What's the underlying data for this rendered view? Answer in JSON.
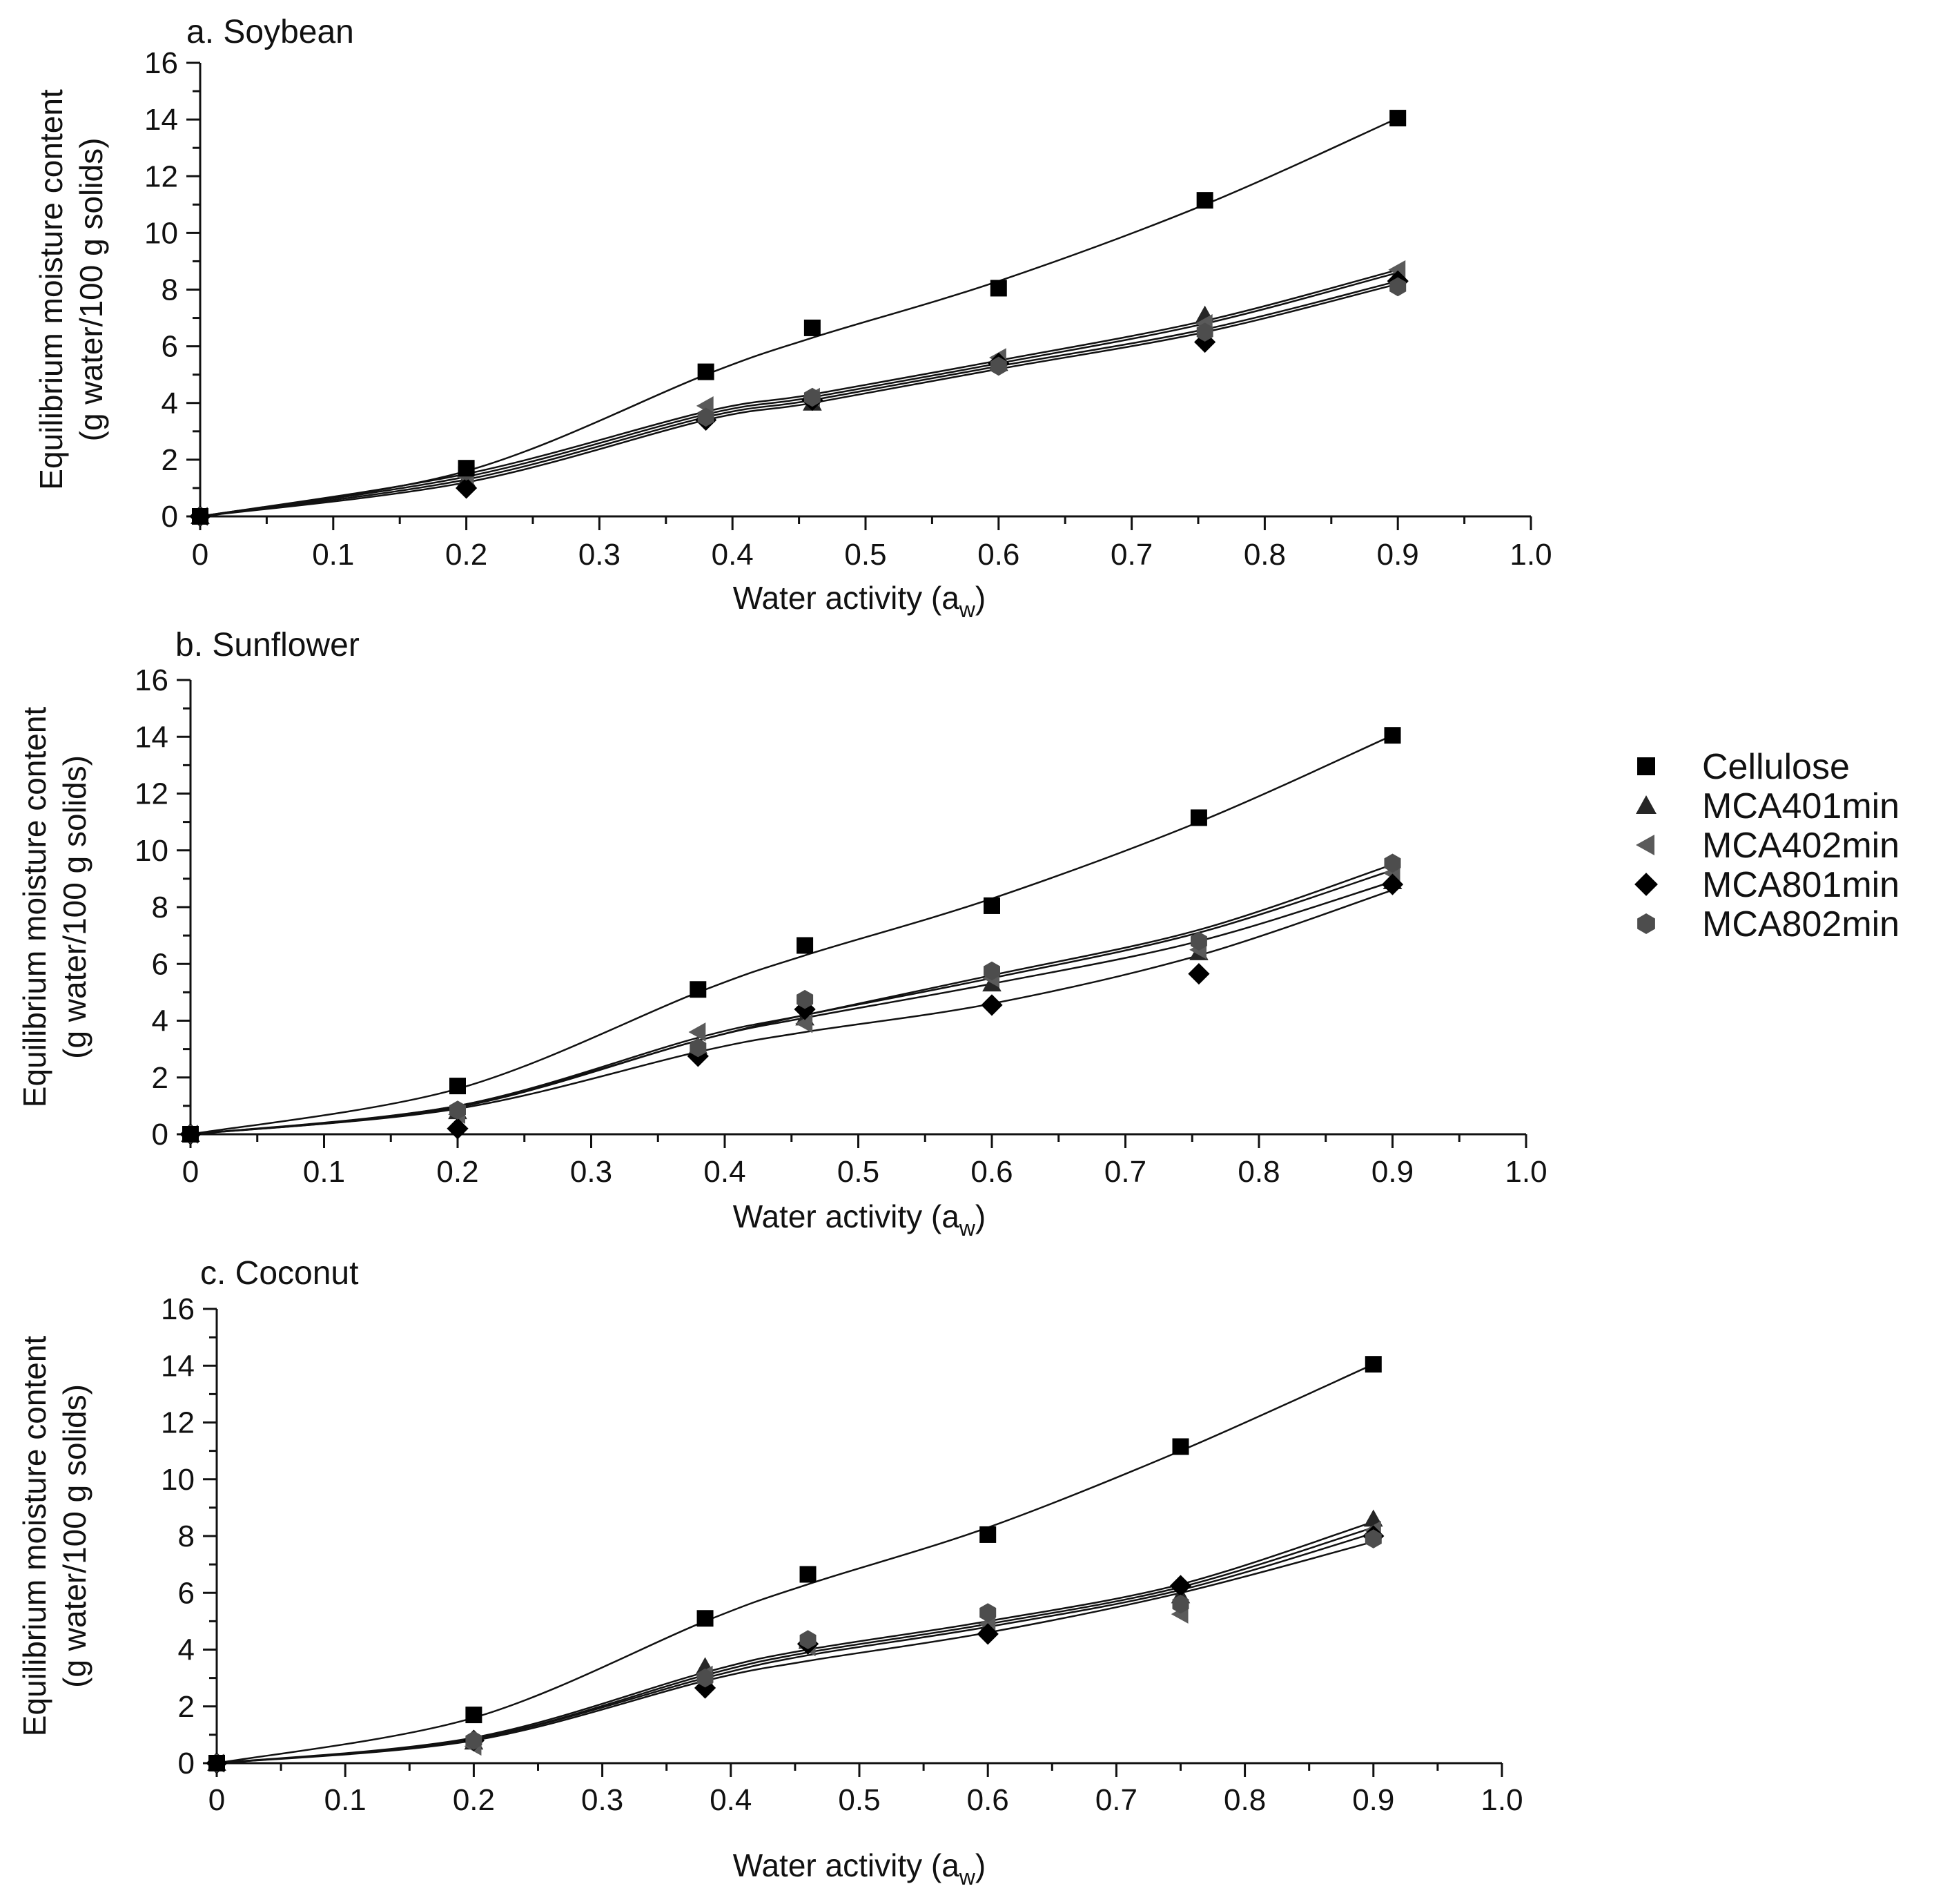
{
  "colors": {
    "cellulose": "#000000",
    "mca401min": "#262626",
    "mca402min": "#5a5a5a",
    "mca801min": "#000000",
    "mca802min": "#4d4d4d",
    "fit_line": "#111111"
  },
  "legend": [
    {
      "key": "cellulose",
      "label": "Cellulose",
      "marker": "square"
    },
    {
      "key": "mca401min",
      "label": "MCA401min",
      "marker": "triangle-up"
    },
    {
      "key": "mca402min",
      "label": "MCA402min",
      "marker": "triangle-left"
    },
    {
      "key": "mca801min",
      "label": "MCA801min",
      "marker": "diamond"
    },
    {
      "key": "mca802min",
      "label": "MCA802min",
      "marker": "hexagon"
    }
  ],
  "chart_data": [
    {
      "type": "scatter",
      "title": "a. Soybean",
      "xlabel": "Water activity (a",
      "xlabel_sub": "w",
      "xlabel_close": ")",
      "ylabel": [
        "Equilibrium moisture content",
        "(g water/100 g solids)"
      ],
      "xlim": [
        0,
        1.0
      ],
      "ylim": [
        0,
        16
      ],
      "xticks": [
        "0",
        "0.1",
        "0.2",
        "0.3",
        "0.4",
        "0.5",
        "0.6",
        "0.7",
        "0.8",
        "0.9",
        "1.0"
      ],
      "yticks": [
        "0",
        "2",
        "4",
        "6",
        "8",
        "10",
        "12",
        "14",
        "16"
      ],
      "x": [
        0,
        0.2,
        0.38,
        0.46,
        0.6,
        0.755,
        0.9
      ],
      "series": [
        {
          "key": "cellulose",
          "name": "Cellulose",
          "values": [
            0,
            1.7,
            5.1,
            6.65,
            8.05,
            11.15,
            14.05
          ],
          "fit": [
            0,
            1.6,
            5.0,
            6.3,
            8.3,
            11.0,
            14.05
          ]
        },
        {
          "key": "mca401min",
          "name": "MCA401min",
          "values": [
            0,
            1.3,
            3.6,
            4.0,
            5.4,
            7.1,
            8.5
          ],
          "fit": [
            0,
            1.4,
            3.6,
            4.2,
            5.4,
            6.8,
            8.6
          ]
        },
        {
          "key": "mca402min",
          "name": "MCA402min",
          "values": [
            0,
            1.4,
            3.9,
            4.2,
            5.6,
            6.8,
            8.7
          ],
          "fit": [
            0,
            1.5,
            3.7,
            4.3,
            5.5,
            6.9,
            8.7
          ]
        },
        {
          "key": "mca801min",
          "name": "MCA801min",
          "values": [
            0,
            1.0,
            3.4,
            4.1,
            5.4,
            6.15,
            8.3
          ],
          "fit": [
            0,
            1.2,
            3.4,
            4.0,
            5.2,
            6.5,
            8.2
          ]
        },
        {
          "key": "mca802min",
          "name": "MCA802min",
          "values": [
            0,
            1.6,
            3.5,
            4.2,
            5.3,
            6.5,
            8.1
          ],
          "fit": [
            0,
            1.3,
            3.5,
            4.1,
            5.3,
            6.6,
            8.3
          ]
        }
      ]
    },
    {
      "type": "scatter",
      "title": "b. Sunflower",
      "xlabel": "Water activity (a",
      "xlabel_sub": "w",
      "xlabel_close": ")",
      "ylabel": [
        "Equilibrium moisture content",
        "(g water/100 g solids)"
      ],
      "xlim": [
        0,
        1.0
      ],
      "ylim": [
        0,
        16
      ],
      "xticks": [
        "0",
        "0.1",
        "0.2",
        "0.3",
        "0.4",
        "0.5",
        "0.6",
        "0.7",
        "0.8",
        "0.9",
        "1.0"
      ],
      "yticks": [
        "0",
        "2",
        "4",
        "6",
        "8",
        "10",
        "12",
        "14",
        "16"
      ],
      "x": [
        0,
        0.2,
        0.38,
        0.46,
        0.6,
        0.755,
        0.9
      ],
      "series": [
        {
          "key": "cellulose",
          "name": "Cellulose",
          "values": [
            0,
            1.7,
            5.1,
            6.65,
            8.05,
            11.15,
            14.05
          ],
          "fit": [
            0,
            1.6,
            5.0,
            6.3,
            8.3,
            11.0,
            14.05
          ]
        },
        {
          "key": "mca401min",
          "name": "MCA401min",
          "values": [
            0,
            0.8,
            3.1,
            4.1,
            5.3,
            6.4,
            8.9
          ],
          "fit": [
            0,
            0.95,
            3.3,
            4.1,
            5.3,
            6.8,
            8.9
          ]
        },
        {
          "key": "mca402min",
          "name": "MCA402min",
          "values": [
            0,
            0.7,
            3.6,
            3.9,
            5.5,
            6.5,
            9.2
          ],
          "fit": [
            0,
            1.0,
            3.4,
            4.2,
            5.5,
            7.1,
            9.3
          ]
        },
        {
          "key": "mca801min",
          "name": "MCA801min",
          "values": [
            0,
            0.2,
            2.75,
            4.4,
            4.55,
            5.65,
            8.8
          ],
          "fit": [
            0,
            0.9,
            2.9,
            3.6,
            4.6,
            6.3,
            8.6
          ]
        },
        {
          "key": "mca802min",
          "name": "MCA802min",
          "values": [
            0,
            0.85,
            3.05,
            4.75,
            5.75,
            6.8,
            9.55
          ],
          "fit": [
            0,
            1.0,
            3.3,
            4.2,
            5.6,
            7.2,
            9.5
          ]
        }
      ]
    },
    {
      "type": "scatter",
      "title": "c. Coconut",
      "xlabel": "Water activity (a",
      "xlabel_sub": "w",
      "xlabel_close": ")",
      "ylabel": [
        "Equilibrium moisture content",
        "(g water/100 g solids)"
      ],
      "xlim": [
        0,
        1.0
      ],
      "ylim": [
        0,
        16
      ],
      "xticks": [
        "0",
        "0.1",
        "0.2",
        "0.3",
        "0.4",
        "0.5",
        "0.6",
        "0.7",
        "0.8",
        "0.9",
        "1.0"
      ],
      "yticks": [
        "0",
        "2",
        "4",
        "6",
        "8",
        "10",
        "12",
        "14",
        "16"
      ],
      "x": [
        0,
        0.2,
        0.38,
        0.46,
        0.6,
        0.75,
        0.9
      ],
      "series": [
        {
          "key": "cellulose",
          "name": "Cellulose",
          "values": [
            0,
            1.7,
            5.1,
            6.65,
            8.05,
            11.15,
            14.05
          ],
          "fit": [
            0,
            1.6,
            5.0,
            6.3,
            8.3,
            11.0,
            14.05
          ]
        },
        {
          "key": "mca401min",
          "name": "MCA401min",
          "values": [
            0,
            0.75,
            3.4,
            4.3,
            4.8,
            5.9,
            8.6
          ],
          "fit": [
            0,
            0.9,
            3.2,
            4.0,
            5.0,
            6.3,
            8.5
          ]
        },
        {
          "key": "mca402min",
          "name": "MCA402min",
          "values": [
            0,
            0.6,
            3.1,
            4.1,
            4.9,
            5.25,
            8.2
          ],
          "fit": [
            0,
            0.85,
            3.1,
            3.9,
            4.9,
            6.2,
            8.3
          ]
        },
        {
          "key": "mca801min",
          "name": "MCA801min",
          "values": [
            0,
            0.8,
            2.65,
            4.2,
            4.55,
            6.25,
            8.0
          ],
          "fit": [
            0,
            0.8,
            2.9,
            3.6,
            4.6,
            6.0,
            7.8
          ]
        },
        {
          "key": "mca802min",
          "name": "MCA802min",
          "values": [
            0,
            0.8,
            3.0,
            4.35,
            5.3,
            5.6,
            7.9
          ],
          "fit": [
            0,
            0.85,
            3.0,
            3.8,
            4.8,
            6.1,
            8.1
          ]
        }
      ]
    }
  ]
}
